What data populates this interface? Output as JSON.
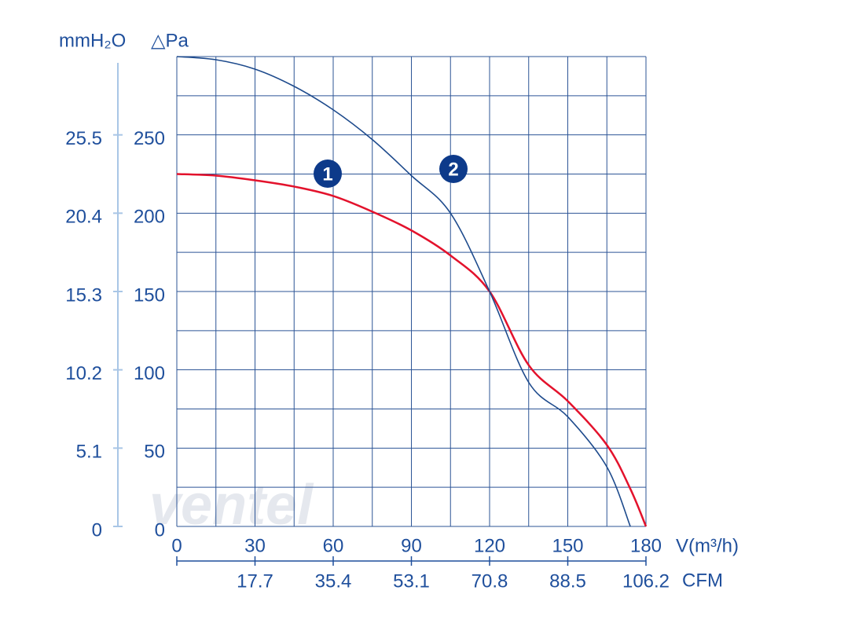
{
  "chart_data": {
    "type": "line",
    "watermark": "ventel",
    "y_label": "mmH₂O",
    "y2_label": "△Pa",
    "x_label": "V(m³/h)",
    "x2_label": "CFM",
    "x": [
      0,
      15,
      30,
      45,
      60,
      75,
      90,
      105,
      120,
      135,
      150,
      165,
      174,
      180
    ],
    "series": [
      {
        "name": "1",
        "color": "#e3122c",
        "values": [
          225,
          224,
          221,
          217,
          211,
          201,
          189,
          173,
          150,
          103,
          80,
          52,
          24,
          0
        ]
      },
      {
        "name": "2",
        "color": "#1d4a8c",
        "values": [
          300,
          298,
          292,
          281,
          266,
          247,
          224,
          200,
          150,
          92,
          70,
          38,
          0,
          null
        ]
      }
    ],
    "xlim": [
      0,
      180
    ],
    "xticks": [
      0,
      30,
      60,
      90,
      120,
      150,
      180
    ],
    "ylim": [
      0,
      300
    ],
    "yticks": [
      0,
      50,
      100,
      150,
      200,
      250
    ],
    "x2lim": [
      0,
      106.2
    ],
    "x2ticks": [
      17.7,
      35.4,
      53.1,
      70.8,
      88.5,
      106.2
    ],
    "y2lim": [
      0,
      30.6
    ],
    "y2ticks": [
      0,
      5.1,
      10.2,
      15.3,
      20.4,
      25.5
    ],
    "x_grid": [
      0,
      15,
      30,
      45,
      60,
      75,
      90,
      105,
      120,
      135,
      150,
      165,
      180
    ],
    "y_grid": [
      0,
      25,
      50,
      75,
      100,
      125,
      150,
      175,
      200,
      225,
      250,
      275,
      300
    ],
    "grid": true
  }
}
